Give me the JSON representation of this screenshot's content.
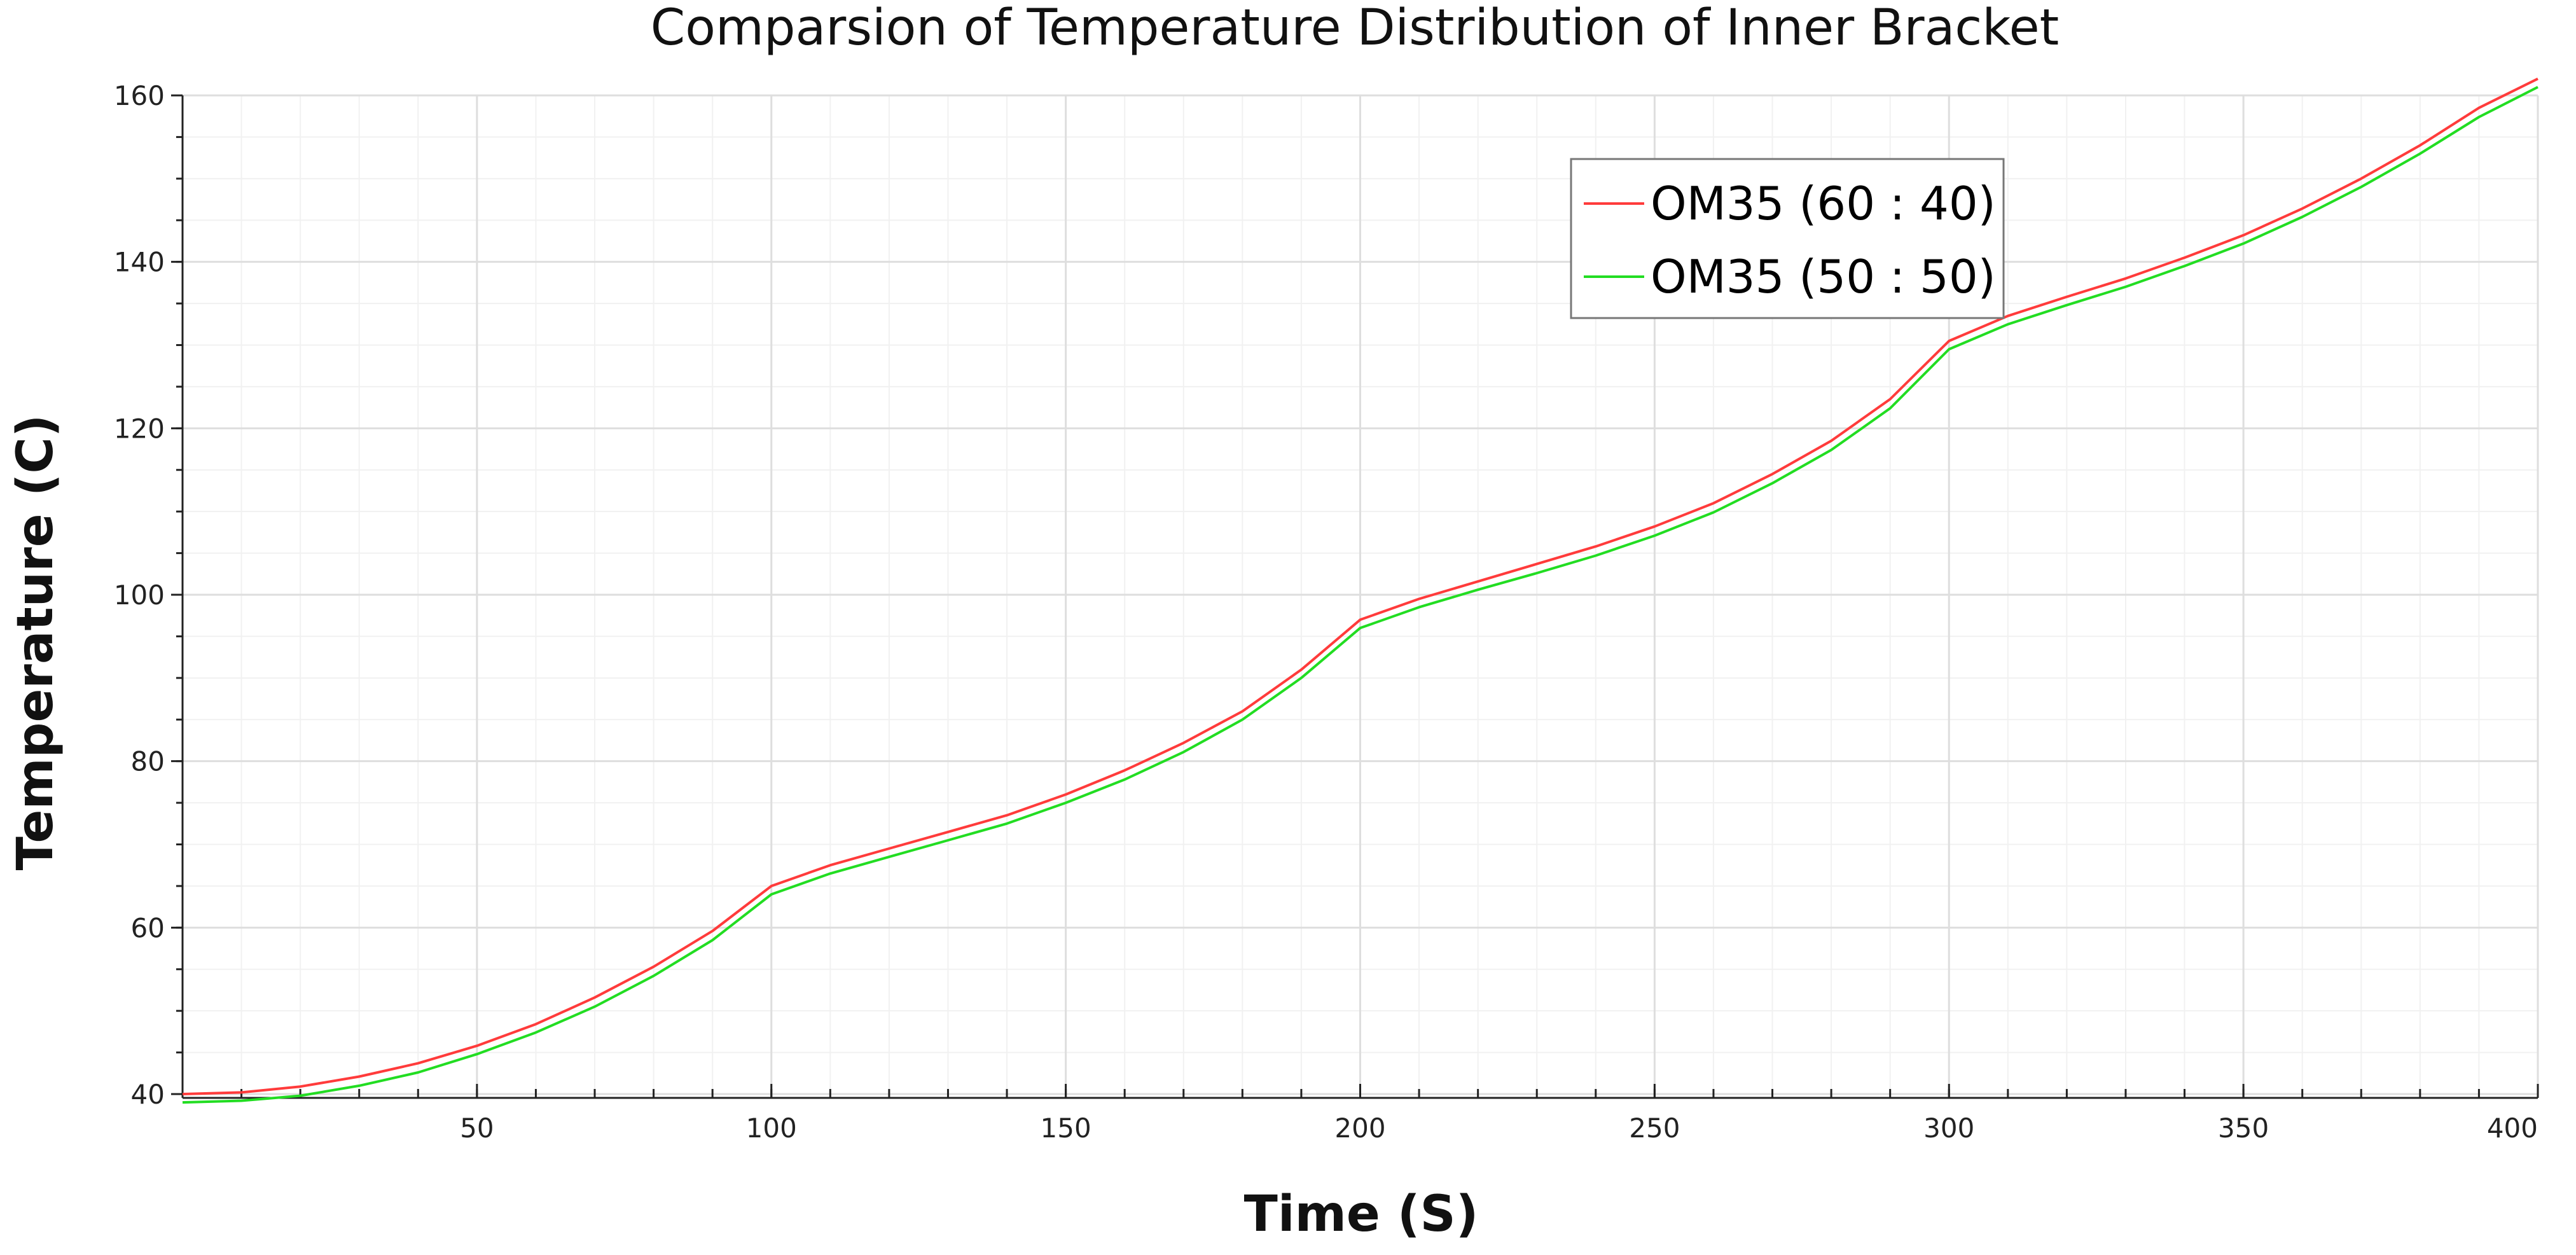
{
  "chart_data": {
    "type": "line",
    "title": "Comparsion of Temperature Distribution of Inner Bracket",
    "xlabel": "Time (S)",
    "ylabel": "Temperature (C)",
    "xlim": [
      0,
      400
    ],
    "ylim": [
      40,
      160
    ],
    "xticks": [
      50,
      100,
      150,
      200,
      250,
      300,
      350,
      400
    ],
    "yticks": [
      40,
      60,
      80,
      100,
      120,
      140,
      160
    ],
    "grid": true,
    "legend_position": "top-right",
    "series": [
      {
        "name": "OM35 (60 : 40)",
        "color": "#ff3b3b",
        "x": [
          0,
          10,
          20,
          30,
          40,
          50,
          60,
          70,
          80,
          90,
          100,
          110,
          120,
          130,
          140,
          150,
          160,
          170,
          180,
          190,
          200,
          210,
          220,
          230,
          240,
          250,
          260,
          270,
          280,
          290,
          300,
          310,
          320,
          330,
          340,
          350,
          360,
          370,
          380,
          390,
          400
        ],
        "y": [
          40.0,
          40.2,
          40.9,
          42.1,
          43.7,
          45.8,
          48.4,
          51.6,
          55.3,
          59.6,
          65.0,
          67.5,
          69.5,
          71.5,
          73.5,
          76.0,
          78.9,
          82.2,
          86.0,
          91.0,
          97.0,
          99.5,
          101.6,
          103.7,
          105.8,
          108.2,
          111.0,
          114.5,
          118.5,
          123.5,
          130.5,
          133.5,
          135.8,
          138.0,
          140.5,
          143.2,
          146.4,
          150.0,
          154.0,
          158.5,
          162.0
        ]
      },
      {
        "name": "OM35 (50 : 50)",
        "color": "#22dd22",
        "x": [
          0,
          10,
          20,
          30,
          40,
          50,
          60,
          70,
          80,
          90,
          100,
          110,
          120,
          130,
          140,
          150,
          160,
          170,
          180,
          190,
          200,
          210,
          220,
          230,
          240,
          250,
          260,
          270,
          280,
          290,
          300,
          310,
          320,
          330,
          340,
          350,
          360,
          370,
          380,
          390,
          400
        ],
        "y": [
          38.9,
          39.2,
          39.8,
          41.0,
          42.6,
          44.8,
          47.4,
          50.5,
          54.2,
          58.5,
          64.0,
          66.5,
          68.5,
          70.5,
          72.5,
          75.0,
          77.8,
          81.1,
          85.0,
          90.0,
          96.0,
          98.5,
          100.6,
          102.6,
          104.7,
          107.1,
          109.9,
          113.4,
          117.4,
          122.4,
          129.5,
          132.5,
          134.8,
          137.0,
          139.5,
          142.2,
          145.4,
          149.0,
          153.0,
          157.4,
          161.0
        ]
      }
    ]
  }
}
